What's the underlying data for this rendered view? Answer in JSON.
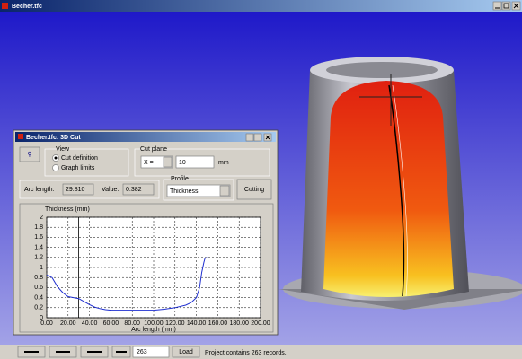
{
  "window": {
    "title": "Becher.tfc"
  },
  "dialog": {
    "title": "Becher.tfc: 3D Cut",
    "view": {
      "label": "View",
      "options": [
        "Cut definition",
        "Graph limits"
      ],
      "selected": 0
    },
    "cut_plane": {
      "label": "Cut plane",
      "axis": "X =",
      "value": "10",
      "unit": "mm"
    },
    "arc_length": {
      "label": "Arc length:",
      "value": 29.81,
      "value_label": "29.810"
    },
    "value": {
      "label": "Value:",
      "value": "0.382"
    },
    "profile": {
      "label": "Profile",
      "selected": "Thickness"
    },
    "button": "Cutting"
  },
  "chart_data": {
    "type": "line",
    "y_label": "Thickness (mm)",
    "x_label": "Arc length (mm)",
    "x": [
      0,
      5,
      10,
      15,
      20,
      25,
      30,
      35,
      40,
      45,
      50,
      55,
      60,
      70,
      80,
      90,
      100,
      110,
      120,
      130,
      135,
      140,
      143,
      145,
      147,
      148,
      150
    ],
    "values": [
      0.85,
      0.8,
      0.62,
      0.5,
      0.42,
      0.4,
      0.38,
      0.32,
      0.26,
      0.21,
      0.18,
      0.16,
      0.15,
      0.15,
      0.15,
      0.15,
      0.15,
      0.17,
      0.2,
      0.25,
      0.3,
      0.4,
      0.6,
      0.9,
      1.1,
      1.18,
      1.2
    ],
    "color": "#2030d0",
    "grid": true,
    "xlim": [
      0,
      200
    ],
    "ylim": [
      0,
      2
    ],
    "xticks": [
      {
        "value": 0,
        "label": "0.00"
      },
      {
        "value": 20,
        "label": "20.00"
      },
      {
        "value": 40,
        "label": "40.00"
      },
      {
        "value": 60,
        "label": "60.00"
      },
      {
        "value": 80,
        "label": "80.00"
      },
      {
        "value": 100,
        "label": "100.00"
      },
      {
        "value": 120,
        "label": "120.00"
      },
      {
        "value": 140,
        "label": "140.00"
      },
      {
        "value": 160,
        "label": "160.00"
      },
      {
        "value": 180,
        "label": "180.00"
      },
      {
        "value": 200,
        "label": "200.00"
      }
    ],
    "yticks": [
      0,
      0.2,
      0.4,
      0.6,
      0.8,
      1,
      1.2,
      1.4,
      1.6,
      1.8,
      2
    ]
  },
  "status": {
    "records": "263",
    "load": "Load",
    "message": "Project contains 263 records."
  }
}
